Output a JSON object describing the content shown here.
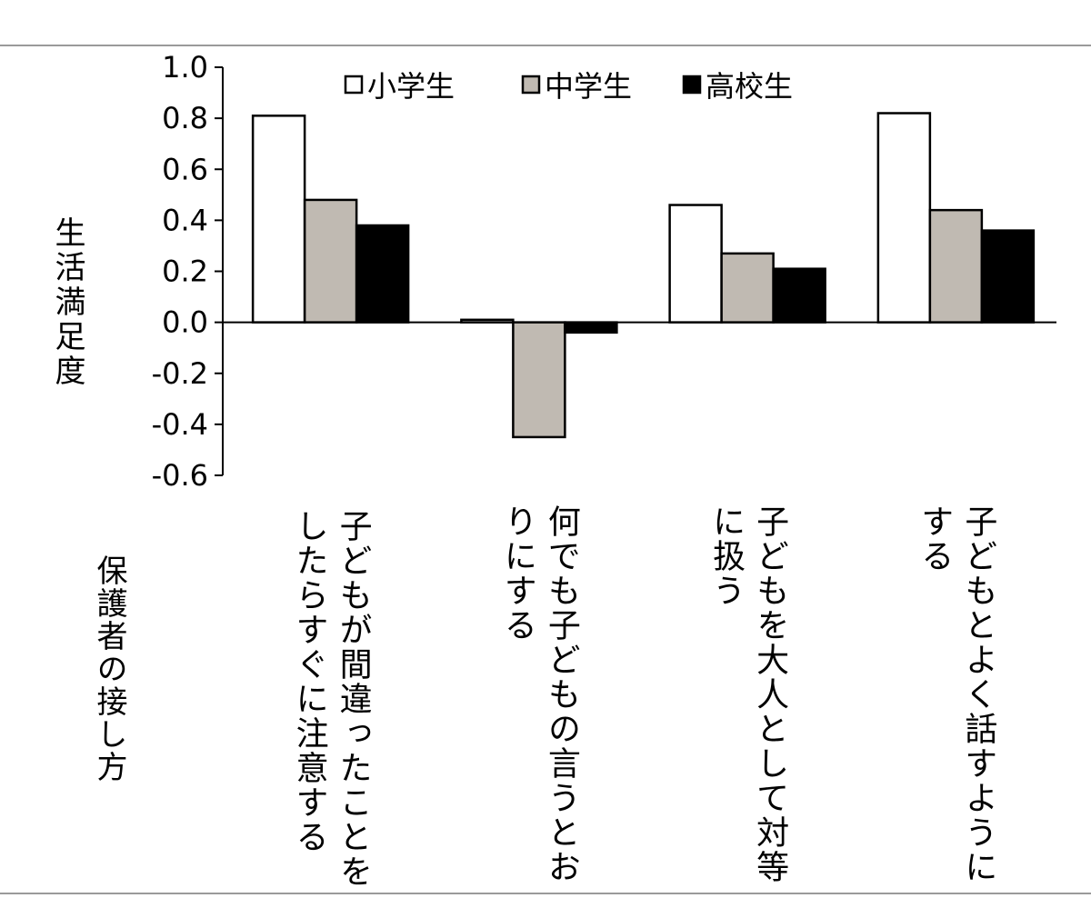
{
  "chart_data": {
    "type": "bar",
    "ylabel": "生活満足度",
    "xlabel": "保護者の接し方",
    "ylim": [
      -0.6,
      1.0
    ],
    "yticks": [
      "1.0",
      "0.8",
      "0.6",
      "0.4",
      "0.2",
      "0.0",
      "-0.2",
      "-0.4",
      "-0.6"
    ],
    "categories": [
      "子どもが間違ったことをしたらすぐに注意する",
      "何でも子どもの言うとおりにする",
      "子どもを大人として対等に扱う",
      "子どもとよく話すようにする"
    ],
    "category_lines": [
      [
        "子どもが間違ったことを",
        "したらすぐに注意する"
      ],
      [
        "何でも子どもの言うとお",
        "りにする"
      ],
      [
        "子どもを大人として対等",
        "に扱う"
      ],
      [
        "子どもとよく話すように",
        "する"
      ]
    ],
    "series": [
      {
        "name": "小学生",
        "color": "#ffffff",
        "values": [
          0.81,
          0.01,
          0.46,
          0.82
        ]
      },
      {
        "name": "中学生",
        "color": "#c0bab2",
        "values": [
          0.48,
          -0.45,
          0.27,
          0.44
        ]
      },
      {
        "name": "高校生",
        "color": "#000000",
        "values": [
          0.38,
          -0.04,
          0.21,
          0.36
        ]
      }
    ],
    "legend_position": "top",
    "grid": false
  }
}
